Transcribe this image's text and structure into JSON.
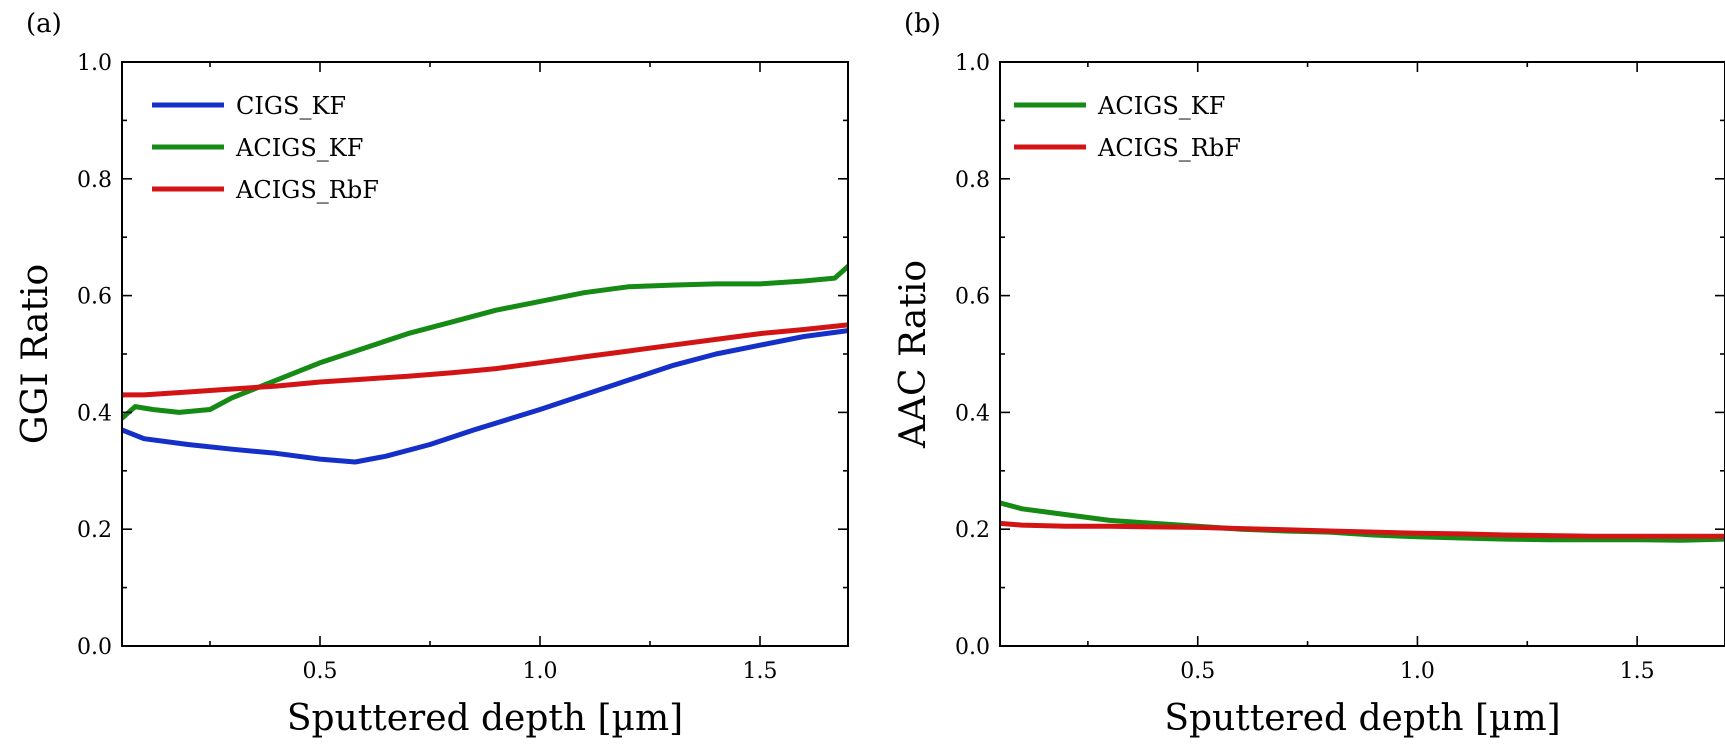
{
  "chart_data": [
    {
      "panel_label": "(a)",
      "type": "line",
      "xlabel": "Sputtered depth [µm]",
      "ylabel": "GGI Ratio",
      "xlim": [
        0.05,
        1.7
      ],
      "ylim": [
        0.0,
        1.0
      ],
      "x_ticks": [
        {
          "value": 0.5,
          "label": "0.5"
        },
        {
          "value": 1.0,
          "label": "1.0"
        },
        {
          "value": 1.5,
          "label": "1.5"
        }
      ],
      "x_minor_ticks": [
        0.25,
        0.75,
        1.25
      ],
      "y_ticks": [
        {
          "value": 0.0,
          "label": "0.0"
        },
        {
          "value": 0.2,
          "label": "0.2"
        },
        {
          "value": 0.4,
          "label": "0.4"
        },
        {
          "value": 0.6,
          "label": "0.6"
        },
        {
          "value": 0.8,
          "label": "0.8"
        },
        {
          "value": 1.0,
          "label": "1.0"
        }
      ],
      "y_minor_ticks": [
        0.1,
        0.3,
        0.5,
        0.7,
        0.9
      ],
      "legend_position": "top-left",
      "series": [
        {
          "name": "CIGS_KF",
          "color": "#1530c8",
          "x": [
            0.05,
            0.1,
            0.2,
            0.3,
            0.4,
            0.5,
            0.58,
            0.65,
            0.75,
            0.85,
            1.0,
            1.1,
            1.2,
            1.3,
            1.4,
            1.5,
            1.6,
            1.7
          ],
          "y": [
            0.37,
            0.355,
            0.345,
            0.337,
            0.33,
            0.32,
            0.315,
            0.325,
            0.345,
            0.37,
            0.405,
            0.43,
            0.455,
            0.48,
            0.5,
            0.515,
            0.53,
            0.54
          ]
        },
        {
          "name": "ACIGS_KF",
          "color": "#158a15",
          "x": [
            0.05,
            0.08,
            0.12,
            0.18,
            0.25,
            0.3,
            0.4,
            0.5,
            0.6,
            0.7,
            0.8,
            0.9,
            1.0,
            1.1,
            1.2,
            1.3,
            1.4,
            1.5,
            1.6,
            1.67,
            1.7
          ],
          "y": [
            0.39,
            0.41,
            0.405,
            0.4,
            0.405,
            0.425,
            0.455,
            0.485,
            0.51,
            0.535,
            0.555,
            0.575,
            0.59,
            0.605,
            0.615,
            0.618,
            0.62,
            0.62,
            0.625,
            0.63,
            0.65
          ]
        },
        {
          "name": "ACIGS_RbF",
          "color": "#d21414",
          "x": [
            0.05,
            0.1,
            0.2,
            0.3,
            0.4,
            0.5,
            0.6,
            0.7,
            0.8,
            0.9,
            1.0,
            1.1,
            1.2,
            1.3,
            1.4,
            1.5,
            1.6,
            1.7
          ],
          "y": [
            0.43,
            0.43,
            0.435,
            0.44,
            0.445,
            0.452,
            0.457,
            0.462,
            0.468,
            0.475,
            0.485,
            0.495,
            0.505,
            0.515,
            0.525,
            0.535,
            0.542,
            0.55
          ]
        }
      ]
    },
    {
      "panel_label": "(b)",
      "type": "line",
      "xlabel": "Sputtered depth [µm]",
      "ylabel": "AAC Ratio",
      "xlim": [
        0.05,
        1.7
      ],
      "ylim": [
        0.0,
        1.0
      ],
      "x_ticks": [
        {
          "value": 0.5,
          "label": "0.5"
        },
        {
          "value": 1.0,
          "label": "1.0"
        },
        {
          "value": 1.5,
          "label": "1.5"
        }
      ],
      "x_minor_ticks": [
        0.25,
        0.75,
        1.25
      ],
      "y_ticks": [
        {
          "value": 0.0,
          "label": "0.0"
        },
        {
          "value": 0.2,
          "label": "0.2"
        },
        {
          "value": 0.4,
          "label": "0.4"
        },
        {
          "value": 0.6,
          "label": "0.6"
        },
        {
          "value": 0.8,
          "label": "0.8"
        },
        {
          "value": 1.0,
          "label": "1.0"
        }
      ],
      "y_minor_ticks": [
        0.1,
        0.3,
        0.5,
        0.7,
        0.9
      ],
      "legend_position": "top-left",
      "series": [
        {
          "name": "ACIGS_KF",
          "color": "#158a15",
          "x": [
            0.05,
            0.1,
            0.2,
            0.3,
            0.4,
            0.5,
            0.6,
            0.7,
            0.8,
            0.9,
            1.0,
            1.1,
            1.2,
            1.3,
            1.4,
            1.5,
            1.6,
            1.7
          ],
          "y": [
            0.245,
            0.235,
            0.225,
            0.215,
            0.21,
            0.205,
            0.2,
            0.197,
            0.195,
            0.19,
            0.187,
            0.185,
            0.183,
            0.182,
            0.182,
            0.182,
            0.181,
            0.183
          ]
        },
        {
          "name": "ACIGS_RbF",
          "color": "#d21414",
          "x": [
            0.05,
            0.1,
            0.2,
            0.3,
            0.4,
            0.5,
            0.6,
            0.7,
            0.8,
            0.9,
            1.0,
            1.1,
            1.2,
            1.3,
            1.4,
            1.5,
            1.6,
            1.7
          ],
          "y": [
            0.21,
            0.207,
            0.205,
            0.205,
            0.204,
            0.203,
            0.201,
            0.199,
            0.197,
            0.195,
            0.193,
            0.192,
            0.19,
            0.189,
            0.188,
            0.188,
            0.188,
            0.188
          ]
        }
      ]
    }
  ]
}
